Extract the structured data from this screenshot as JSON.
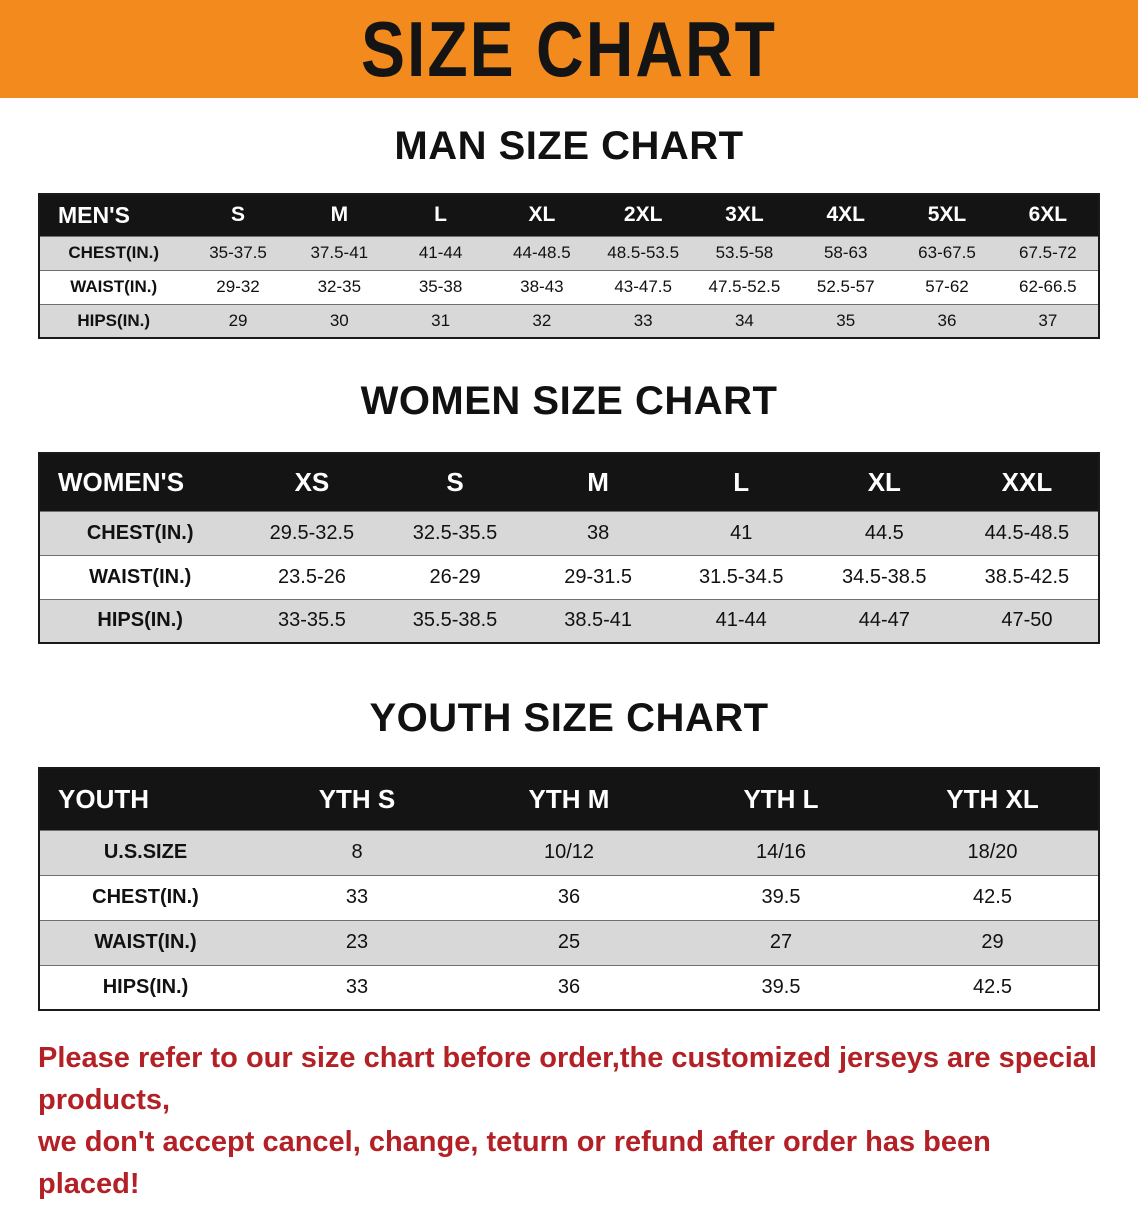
{
  "banner": {
    "title": "SIZE CHART",
    "background_color": "#F28A1E",
    "text_color": "#141414"
  },
  "sections": [
    {
      "heading": "MAN SIZE CHART",
      "table": {
        "header": [
          "MEN'S",
          "S",
          "M",
          "L",
          "XL",
          "2XL",
          "3XL",
          "4XL",
          "5XL",
          "6XL"
        ],
        "rows": [
          {
            "label": "CHEST(IN.)",
            "values": [
              "35-37.5",
              "37.5-41",
              "41-44",
              "44-48.5",
              "48.5-53.5",
              "53.5-58",
              "58-63",
              "63-67.5",
              "67.5-72"
            ]
          },
          {
            "label": "WAIST(IN.)",
            "values": [
              "29-32",
              "32-35",
              "35-38",
              "38-43",
              "43-47.5",
              "47.5-52.5",
              "52.5-57",
              "57-62",
              "62-66.5"
            ]
          },
          {
            "label": "HIPS(IN.)",
            "values": [
              "29",
              "30",
              "31",
              "32",
              "33",
              "34",
              "35",
              "36",
              "37"
            ]
          }
        ]
      }
    },
    {
      "heading": "WOMEN SIZE CHART",
      "table": {
        "header": [
          "WOMEN'S",
          "XS",
          "S",
          "M",
          "L",
          "XL",
          "XXL"
        ],
        "rows": [
          {
            "label": "CHEST(IN.)",
            "values": [
              "29.5-32.5",
              "32.5-35.5",
              "38",
              "41",
              "44.5",
              "44.5-48.5"
            ]
          },
          {
            "label": "WAIST(IN.)",
            "values": [
              "23.5-26",
              "26-29",
              "29-31.5",
              "31.5-34.5",
              "34.5-38.5",
              "38.5-42.5"
            ]
          },
          {
            "label": "HIPS(IN.)",
            "values": [
              "33-35.5",
              "35.5-38.5",
              "38.5-41",
              "41-44",
              "44-47",
              "47-50"
            ]
          }
        ]
      }
    },
    {
      "heading": "YOUTH SIZE CHART",
      "table": {
        "header": [
          "YOUTH",
          "YTH S",
          "YTH M",
          "YTH L",
          "YTH XL"
        ],
        "rows": [
          {
            "label": "U.S.SIZE",
            "values": [
              "8",
              "10/12",
              "14/16",
              "18/20"
            ]
          },
          {
            "label": "CHEST(IN.)",
            "values": [
              "33",
              "36",
              "39.5",
              "42.5"
            ]
          },
          {
            "label": "WAIST(IN.)",
            "values": [
              "23",
              "25",
              "27",
              "29"
            ]
          },
          {
            "label": "HIPS(IN.)",
            "values": [
              "33",
              "36",
              "39.5",
              "42.5"
            ]
          }
        ]
      }
    }
  ],
  "footer": {
    "line1": "Please refer to our size chart before order,the customized jerseys are special products,",
    "line2": "we don't accept cancel, change, teturn or refund after order has been placed!",
    "text_color": "#B32025"
  }
}
